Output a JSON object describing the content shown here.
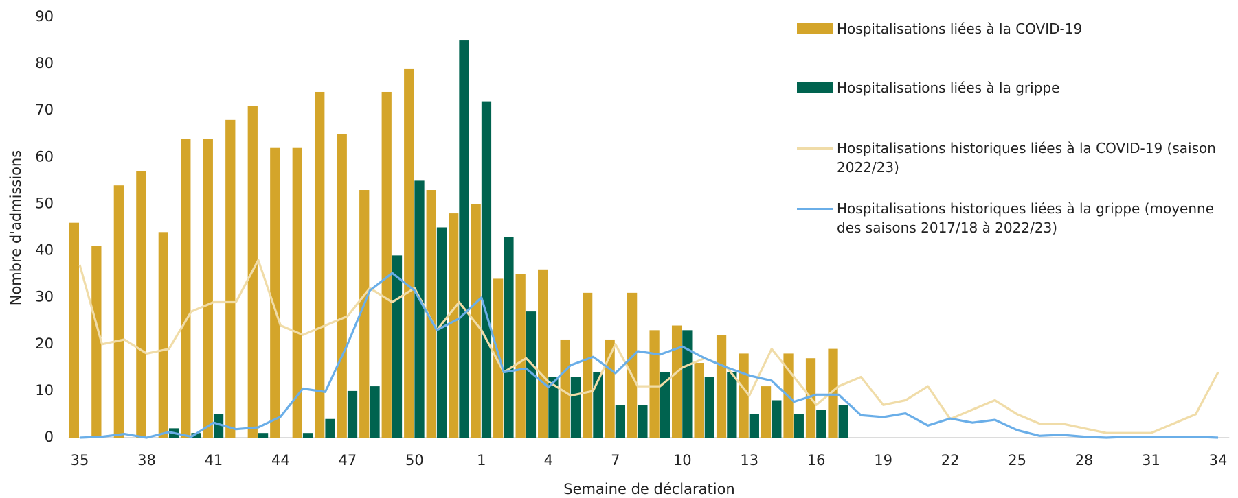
{
  "chart_data": {
    "type": "bar-line",
    "x_label": "Semaine de déclaration",
    "y_label": "Nombre d'admissions",
    "categories": [
      "35",
      null,
      null,
      "38",
      null,
      null,
      "41",
      null,
      null,
      "44",
      null,
      null,
      "47",
      null,
      null,
      "50",
      null,
      null,
      "1",
      null,
      null,
      "4",
      null,
      null,
      "7",
      null,
      null,
      "10",
      null,
      null,
      "13",
      null,
      null,
      "16",
      null,
      null,
      "19",
      null,
      null,
      "22",
      null,
      null,
      "25",
      null,
      null,
      "28",
      null,
      null,
      "31",
      null,
      null,
      "34"
    ],
    "ylim": [
      0,
      90
    ],
    "yticks": [
      0,
      10,
      20,
      30,
      40,
      50,
      60,
      70,
      80,
      90
    ],
    "series": [
      {
        "name": "Hospitalisations liées à la COVID-19",
        "kind": "bar",
        "color": "#d4a52a",
        "values": [
          46,
          41,
          54,
          57,
          44,
          64,
          64,
          68,
          71,
          62,
          62,
          74,
          65,
          53,
          74,
          79,
          53,
          48,
          50,
          34,
          35,
          36,
          21,
          31,
          21,
          31,
          23,
          24,
          16,
          22,
          18,
          11,
          18,
          17,
          19,
          null,
          null,
          null,
          null,
          null,
          null,
          null,
          null,
          null,
          null,
          null,
          null,
          null,
          null,
          null,
          null,
          null
        ]
      },
      {
        "name": "Hospitalisations liées à la grippe",
        "kind": "bar",
        "color": "#00634f",
        "values": [
          0,
          0,
          0,
          0,
          2,
          1,
          5,
          0,
          1,
          0,
          1,
          4,
          10,
          11,
          39,
          55,
          45,
          85,
          72,
          43,
          27,
          13,
          13,
          14,
          7,
          7,
          14,
          23,
          13,
          14,
          5,
          8,
          5,
          6,
          7,
          null,
          null,
          null,
          null,
          null,
          null,
          null,
          null,
          null,
          null,
          null,
          null,
          null,
          null,
          null,
          null,
          null
        ]
      },
      {
        "name": "Hospitalisations historiques liées à la COVID-19 (saison 2022/23)",
        "kind": "line",
        "color": "#f0dca8",
        "values": [
          37,
          20,
          21,
          18,
          19,
          27,
          29,
          29,
          38,
          24,
          22,
          24,
          26,
          32,
          29,
          32,
          23,
          29,
          23,
          14,
          17,
          12,
          9,
          10,
          20,
          11,
          11,
          15,
          17,
          15,
          9,
          19,
          13,
          7,
          11,
          13,
          7,
          8,
          11,
          4,
          6,
          8,
          5,
          3,
          3,
          2,
          1,
          1,
          1,
          3,
          5,
          14
        ]
      },
      {
        "name": "Hospitalisations historiques liées à la grippe (moyenne des saisons 2017/18 à 2022/23)",
        "kind": "line",
        "color": "#6aaee8",
        "values": [
          0,
          0.2,
          0.8,
          0,
          1.2,
          0.2,
          3.2,
          1.8,
          2.2,
          4.5,
          10.5,
          9.8,
          20,
          31.5,
          35.2,
          31.5,
          23,
          25.5,
          30,
          14,
          14.8,
          10.8,
          15.5,
          17.3,
          13.8,
          18.5,
          17.8,
          19.5,
          17,
          15,
          13.3,
          12.2,
          7.7,
          9.2,
          9.2,
          4.8,
          4.4,
          5.2,
          2.6,
          4.1,
          3.2,
          3.8,
          1.6,
          0.4,
          0.6,
          0.2,
          0,
          0.2,
          0.2,
          0.2,
          0.2,
          0
        ]
      }
    ]
  }
}
